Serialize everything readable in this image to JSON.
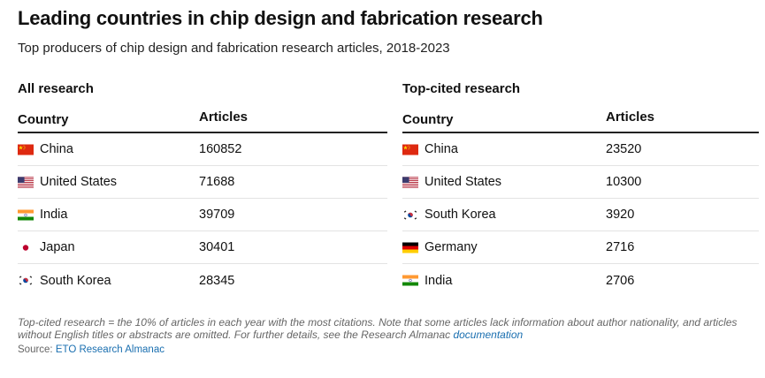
{
  "title": "Leading countries in chip design and fabrication research",
  "subtitle": "Top producers of chip design and fabrication research articles, 2018-2023",
  "columns": {
    "country": "Country",
    "articles": "Articles"
  },
  "all_research": {
    "heading": "All research",
    "rows": [
      {
        "flag": "china-flag-icon",
        "country": "China",
        "articles": "160852"
      },
      {
        "flag": "united-states-flag-icon",
        "country": "United States",
        "articles": "71688"
      },
      {
        "flag": "india-flag-icon",
        "country": "India",
        "articles": "39709"
      },
      {
        "flag": "japan-flag-icon",
        "country": "Japan",
        "articles": "30401"
      },
      {
        "flag": "south-korea-flag-icon",
        "country": "South Korea",
        "articles": "28345"
      }
    ]
  },
  "top_cited": {
    "heading": "Top-cited research",
    "rows": [
      {
        "flag": "china-flag-icon",
        "country": "China",
        "articles": "23520"
      },
      {
        "flag": "united-states-flag-icon",
        "country": "United States",
        "articles": "10300"
      },
      {
        "flag": "south-korea-flag-icon",
        "country": "South Korea",
        "articles": "3920"
      },
      {
        "flag": "germany-flag-icon",
        "country": "Germany",
        "articles": "2716"
      },
      {
        "flag": "india-flag-icon",
        "country": "India",
        "articles": "2706"
      }
    ]
  },
  "note": {
    "text": "Top-cited research = the 10% of articles in each year with the most citations. Note that some articles lack information about author nationality, and articles without English titles or abstracts are omitted. For further details, see the Research Almanac ",
    "link_text": "documentation"
  },
  "source": {
    "prefix": "Source: ",
    "link_text": "ETO Research Almanac"
  },
  "colors": {
    "link": "#1a6fb0",
    "header_rule": "#222222",
    "row_rule": "#e3e3e3"
  }
}
